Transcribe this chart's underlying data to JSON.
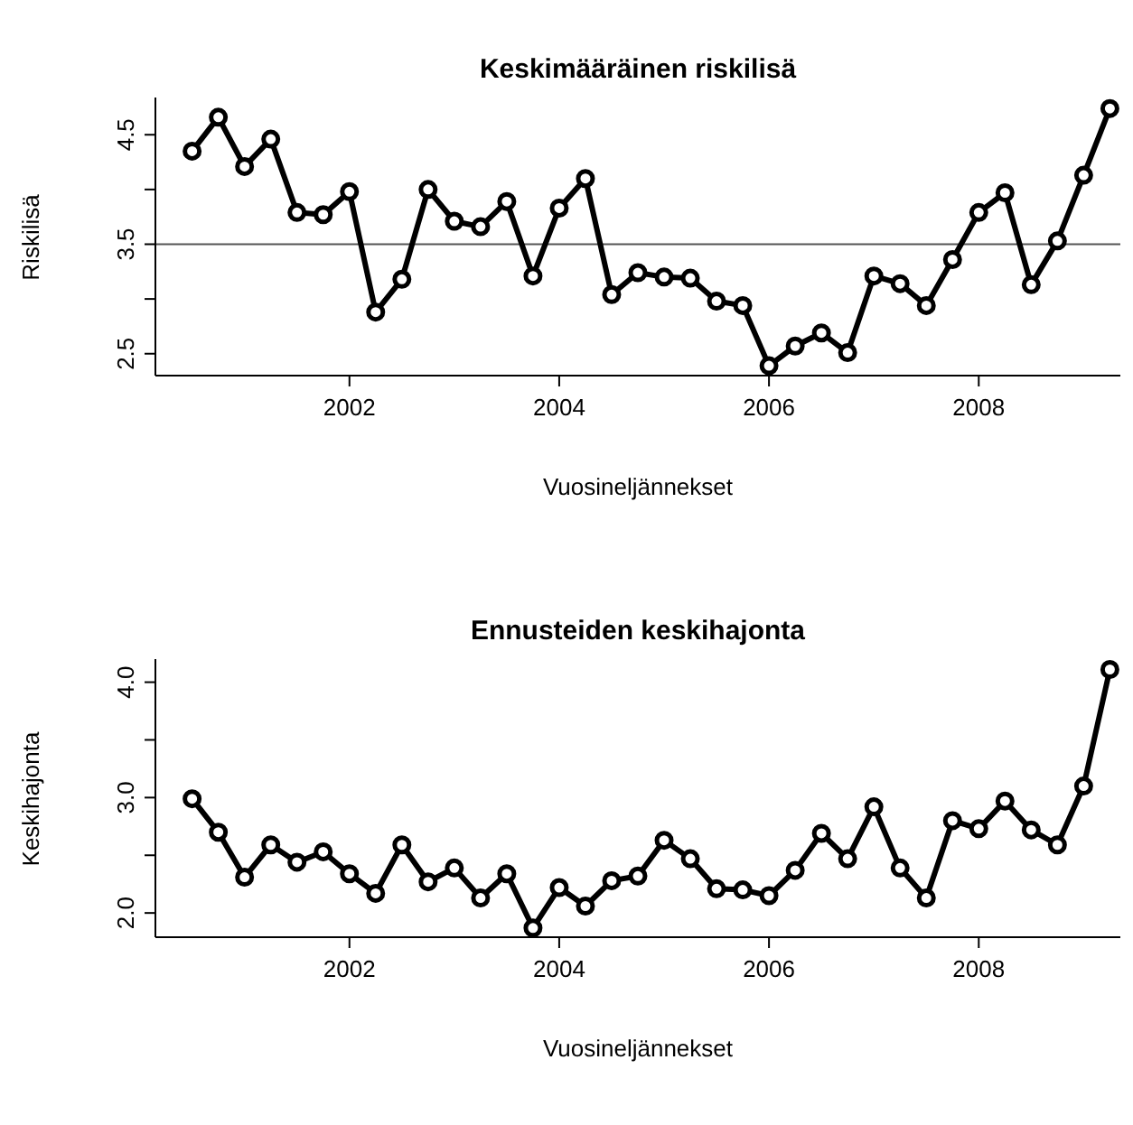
{
  "chart_data": [
    {
      "type": "line",
      "title": "Keskimääräinen riskilisä",
      "xlabel": "Vuosineljännekset",
      "ylabel": "Riskilisä",
      "x": [
        2000.5,
        2000.75,
        2001,
        2001.25,
        2001.5,
        2001.75,
        2002,
        2002.25,
        2002.5,
        2002.75,
        2003,
        2003.25,
        2003.5,
        2003.75,
        2004,
        2004.25,
        2004.5,
        2004.75,
        2005,
        2005.25,
        2005.5,
        2005.75,
        2006,
        2006.25,
        2006.5,
        2006.75,
        2007,
        2007.25,
        2007.5,
        2007.75,
        2008,
        2008.25,
        2008.5,
        2008.75,
        2009,
        2009.25
      ],
      "series": [
        {
          "color": "#000000",
          "values": [
            4.35,
            4.66,
            4.21,
            4.46,
            3.79,
            3.77,
            3.98,
            2.88,
            3.18,
            4.0,
            3.71,
            3.66,
            3.89,
            3.21,
            3.83,
            4.1,
            3.04,
            3.24,
            3.2,
            3.19,
            2.98,
            2.94,
            2.39,
            2.57,
            2.69,
            2.51,
            3.21,
            3.14,
            2.94,
            3.36,
            3.79,
            3.97,
            3.13,
            3.53,
            4.13,
            4.74
          ]
        }
      ],
      "xlim": [
        2000.15,
        2009.35
      ],
      "xticks": [
        2002,
        2004,
        2006,
        2008
      ],
      "ylim": [
        2.3,
        4.84
      ],
      "yticks": [
        2.5,
        {
          "value": 3,
          "label": null
        },
        3.5,
        {
          "value": 4,
          "label": null
        },
        4.5
      ],
      "ref_lines": [
        {
          "axis": "y",
          "value": 3.5,
          "color": "#555555"
        }
      ],
      "marker": "circle",
      "line_style": "solid",
      "grid": false,
      "legend": false
    },
    {
      "type": "line",
      "title": "Ennusteiden keskihajonta",
      "xlabel": "Vuosineljännekset",
      "ylabel": "Keskihajonta",
      "x": [
        2000.5,
        2000.75,
        2001,
        2001.25,
        2001.5,
        2001.75,
        2002,
        2002.25,
        2002.5,
        2002.75,
        2003,
        2003.25,
        2003.5,
        2003.75,
        2004,
        2004.25,
        2004.5,
        2004.75,
        2005,
        2005.25,
        2005.5,
        2005.75,
        2006,
        2006.25,
        2006.5,
        2006.75,
        2007,
        2007.25,
        2007.5,
        2007.75,
        2008,
        2008.25,
        2008.5,
        2008.75,
        2009,
        2009.25
      ],
      "series": [
        {
          "color": "#000000",
          "values": [
            2.99,
            2.7,
            2.31,
            2.59,
            2.44,
            2.53,
            2.34,
            2.17,
            2.59,
            2.27,
            2.39,
            2.13,
            2.34,
            1.87,
            2.22,
            2.06,
            2.28,
            2.32,
            2.63,
            2.47,
            2.21,
            2.2,
            2.15,
            2.37,
            2.69,
            2.47,
            2.92,
            2.39,
            2.13,
            2.8,
            2.73,
            2.97,
            2.72,
            2.59,
            3.1,
            4.11
          ]
        }
      ],
      "xlim": [
        2000.15,
        2009.35
      ],
      "xticks": [
        2002,
        2004,
        2006,
        2008
      ],
      "ylim": [
        1.79,
        4.2
      ],
      "yticks": [
        {
          "value": 2,
          "label": "2.0"
        },
        {
          "value": 2.5,
          "label": null
        },
        {
          "value": 3,
          "label": "3.0"
        },
        {
          "value": 3.5,
          "label": null
        },
        {
          "value": 4,
          "label": "4.0"
        }
      ],
      "marker": "circle",
      "line_style": "solid",
      "grid": false,
      "legend": false
    }
  ]
}
